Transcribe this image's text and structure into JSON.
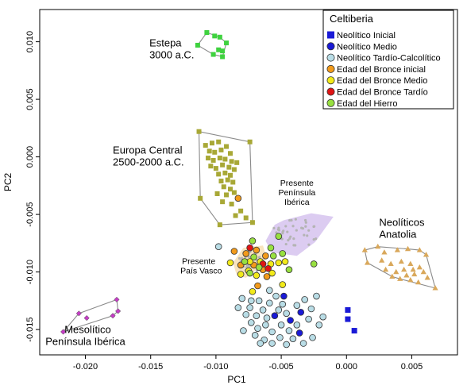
{
  "chart_data": {
    "type": "scatter",
    "xlabel": "PC1",
    "ylabel": "PC2",
    "xlim": [
      -0.0235,
      0.0085
    ],
    "ylim": [
      -0.0172,
      0.0128
    ],
    "xticks": [
      -0.02,
      -0.015,
      -0.01,
      -0.005,
      0.0,
      0.005
    ],
    "xtick_labels": [
      "-0.020",
      "-0.015",
      "-0.010",
      "-0.005",
      "0.000",
      "0.005"
    ],
    "yticks": [
      0.01,
      0.005,
      0.0,
      -0.005,
      -0.01,
      -0.015
    ],
    "ytick_labels": [
      "0.010",
      "0.005",
      "0.000",
      "-0.005",
      "-0.010",
      "-0.015"
    ],
    "legend": {
      "title": "Celtiberia",
      "position": "top-right",
      "entries": [
        {
          "label": "Neolítico Inicial",
          "marker": "square",
          "color": "#1a1ad6"
        },
        {
          "label": "Neolítico Medio",
          "marker": "circle",
          "color": "#1a1ad6"
        },
        {
          "label": "Neolítico Tardío-Calcolítico",
          "marker": "circle",
          "color": "#b9dde6"
        },
        {
          "label": "Edad del Bronce inicial",
          "marker": "circle",
          "color": "#f29a1a"
        },
        {
          "label": "Edad del Bronce Medio",
          "marker": "circle",
          "color": "#f2ea1a"
        },
        {
          "label": "Edad del Bronce Tardío",
          "marker": "circle",
          "color": "#e01414"
        },
        {
          "label": "Edad del Hierro",
          "marker": "circle",
          "color": "#98e040"
        }
      ]
    },
    "annotations": [
      {
        "lines": [
          "Estepa",
          "3000 a.C."
        ],
        "x": -0.0151,
        "y": 0.0096,
        "size": "large"
      },
      {
        "lines": [
          "Europa Central",
          "2500-2000 a.C."
        ],
        "x": -0.0179,
        "y": 0.0003,
        "size": "large"
      },
      {
        "lines": [
          "Neolíticos",
          "Anatolia"
        ],
        "x": 0.0025,
        "y": -0.006,
        "size": "large"
      },
      {
        "lines": [
          "Mesolítico",
          "Península Ibérica"
        ],
        "x": -0.0216,
        "y": -0.0153,
        "size": "large"
      },
      {
        "lines": [
          "Presente",
          "Península",
          "Ibérica"
        ],
        "x": -0.0038,
        "y": -0.0025,
        "size": "small"
      },
      {
        "lines": [
          "Presente",
          "País Vasco"
        ],
        "x": -0.0126,
        "y": -0.0093,
        "size": "small"
      }
    ],
    "reference_groups": [
      {
        "name": "Estepa",
        "color": "#3fd23f",
        "marker": "square",
        "hull": true,
        "points": [
          [
            -0.0114,
            0.0097
          ],
          [
            -0.0107,
            0.0108
          ],
          [
            -0.0101,
            0.0105
          ],
          [
            -0.0097,
            0.0104
          ],
          [
            -0.0092,
            0.0099
          ],
          [
            -0.0095,
            0.0092
          ],
          [
            -0.0102,
            0.0089
          ],
          [
            -0.0095,
            0.0087
          ],
          [
            -0.0098,
            0.0093
          ]
        ]
      },
      {
        "name": "Europa Central",
        "color": "#a8a836",
        "marker": "square",
        "hull": true,
        "points": [
          [
            -0.0113,
            0.0022
          ],
          [
            -0.0112,
            -0.0036
          ],
          [
            -0.0097,
            -0.0059
          ],
          [
            -0.0072,
            -0.0057
          ],
          [
            -0.0074,
            0.0013
          ],
          [
            -0.0108,
            0.001
          ],
          [
            -0.0103,
            0.0012
          ],
          [
            -0.0098,
            0.0013
          ],
          [
            -0.0105,
            0.0005
          ],
          [
            -0.0101,
            0.0004
          ],
          [
            -0.0096,
            0.0006
          ],
          [
            -0.0092,
            0.0009
          ],
          [
            -0.0089,
            0.0003
          ],
          [
            -0.0106,
            -0.0001
          ],
          [
            -0.0102,
            -0.0003
          ],
          [
            -0.0097,
            -0.0001
          ],
          [
            -0.0093,
            -0.0002
          ],
          [
            -0.0088,
            -0.0004
          ],
          [
            -0.0084,
            -0.0005
          ],
          [
            -0.0104,
            -0.0008
          ],
          [
            -0.01,
            -0.001
          ],
          [
            -0.0095,
            -0.0007
          ],
          [
            -0.009,
            -0.0009
          ],
          [
            -0.0086,
            -0.0011
          ],
          [
            -0.0098,
            -0.0015
          ],
          [
            -0.0093,
            -0.0014
          ],
          [
            -0.0089,
            -0.0016
          ],
          [
            -0.0096,
            -0.0021
          ],
          [
            -0.0091,
            -0.002
          ],
          [
            -0.0087,
            -0.0022
          ],
          [
            -0.0094,
            -0.0026
          ],
          [
            -0.0089,
            -0.0028
          ],
          [
            -0.0099,
            -0.0032
          ],
          [
            -0.0092,
            -0.0033
          ],
          [
            -0.0086,
            -0.0031
          ],
          [
            -0.0095,
            -0.0039
          ],
          [
            -0.0088,
            -0.0041
          ],
          [
            -0.0081,
            -0.0047
          ],
          [
            -0.0085,
            -0.0051
          ],
          [
            -0.0077,
            -0.0053
          ]
        ]
      },
      {
        "name": "Neolíticos Anatolia",
        "color": "#d9a85b",
        "marker": "triangle",
        "hull": true,
        "points": [
          [
            0.0014,
            -0.0081
          ],
          [
            0.0016,
            -0.0092
          ],
          [
            0.0035,
            -0.0104
          ],
          [
            0.0055,
            -0.0109
          ],
          [
            0.0068,
            -0.0114
          ],
          [
            0.0061,
            -0.0085
          ],
          [
            0.0024,
            -0.0078
          ],
          [
            0.0029,
            -0.0083
          ],
          [
            0.0039,
            -0.0081
          ],
          [
            0.0047,
            -0.008
          ],
          [
            0.0056,
            -0.0081
          ],
          [
            0.0027,
            -0.009
          ],
          [
            0.0034,
            -0.0093
          ],
          [
            0.0042,
            -0.0091
          ],
          [
            0.0049,
            -0.0093
          ],
          [
            0.0051,
            -0.0098
          ],
          [
            0.0056,
            -0.0096
          ],
          [
            0.0044,
            -0.0098
          ],
          [
            0.0038,
            -0.01
          ],
          [
            0.0046,
            -0.0103
          ],
          [
            0.0052,
            -0.0102
          ],
          [
            0.0059,
            -0.01
          ],
          [
            0.0041,
            -0.0106
          ],
          [
            0.0049,
            -0.0107
          ],
          [
            0.0062,
            -0.0105
          ],
          [
            0.003,
            -0.0098
          ]
        ]
      },
      {
        "name": "Mesolítico Península Ibérica",
        "color": "#c53ec5",
        "marker": "diamond",
        "hull": true,
        "points": [
          [
            -0.0217,
            -0.0152
          ],
          [
            -0.0205,
            -0.0136
          ],
          [
            -0.0176,
            -0.0124
          ],
          [
            -0.0175,
            -0.0134
          ],
          [
            -0.0179,
            -0.0138
          ],
          [
            -0.0199,
            -0.014
          ]
        ]
      }
    ],
    "background_regions": [
      {
        "name": "Presente Península Ibérica",
        "color": "#d6c3ef",
        "points_color": "#b4b4b4",
        "hull": [
          [
            -0.0062,
            -0.0073
          ],
          [
            -0.0055,
            -0.0059
          ],
          [
            -0.0048,
            -0.0055
          ],
          [
            -0.0027,
            -0.0049
          ],
          [
            -0.001,
            -0.0052
          ],
          [
            -0.0024,
            -0.0074
          ],
          [
            -0.0038,
            -0.0086
          ],
          [
            -0.0057,
            -0.0083
          ]
        ]
      },
      {
        "name": "Presente País Vasco",
        "color": "#f7dfb3",
        "points_color": "#b4b4b4",
        "hull": [
          [
            -0.0084,
            -0.0103
          ],
          [
            -0.0087,
            -0.0092
          ],
          [
            -0.0079,
            -0.0079
          ],
          [
            -0.0064,
            -0.0077
          ],
          [
            -0.0061,
            -0.0088
          ],
          [
            -0.0068,
            -0.0097
          ],
          [
            -0.0077,
            -0.0105
          ]
        ]
      }
    ],
    "series": [
      {
        "name": "Neolítico Inicial",
        "color": "#1a1ad6",
        "marker": "square",
        "points": [
          [
            0.0001,
            -0.0133
          ],
          [
            0.0001,
            -0.0141
          ],
          [
            0.0006,
            -0.0151
          ]
        ]
      },
      {
        "name": "Neolítico Medio",
        "color": "#1a1ad6",
        "marker": "circle",
        "points": [
          [
            -0.0048,
            -0.0121
          ],
          [
            -0.0035,
            -0.0135
          ],
          [
            -0.0043,
            -0.0142
          ],
          [
            -0.0055,
            -0.0138
          ],
          [
            -0.0036,
            -0.0153
          ]
        ]
      },
      {
        "name": "Neolítico Tardío-Calcolítico",
        "color": "#b9dde6",
        "marker": "circle",
        "points": [
          [
            -0.0098,
            -0.0078
          ],
          [
            -0.008,
            -0.0123
          ],
          [
            -0.0074,
            -0.0131
          ],
          [
            -0.0067,
            -0.0125
          ],
          [
            -0.0064,
            -0.0133
          ],
          [
            -0.0059,
            -0.0127
          ],
          [
            -0.0054,
            -0.0121
          ],
          [
            -0.0049,
            -0.0128
          ],
          [
            -0.0046,
            -0.0136
          ],
          [
            -0.0038,
            -0.0129
          ],
          [
            -0.0032,
            -0.0124
          ],
          [
            -0.0027,
            -0.0132
          ],
          [
            -0.0023,
            -0.0121
          ],
          [
            -0.0018,
            -0.0139
          ],
          [
            -0.0021,
            -0.0146
          ],
          [
            -0.0026,
            -0.0157
          ],
          [
            -0.0038,
            -0.0146
          ],
          [
            -0.0044,
            -0.0151
          ],
          [
            -0.005,
            -0.0146
          ],
          [
            -0.0057,
            -0.0152
          ],
          [
            -0.0062,
            -0.0146
          ],
          [
            -0.0068,
            -0.0149
          ],
          [
            -0.0073,
            -0.0144
          ],
          [
            -0.0077,
            -0.0137
          ],
          [
            -0.0079,
            -0.0151
          ],
          [
            -0.007,
            -0.0155
          ],
          [
            -0.0063,
            -0.0159
          ],
          [
            -0.0057,
            -0.0162
          ],
          [
            -0.0051,
            -0.0157
          ],
          [
            -0.0046,
            -0.0163
          ],
          [
            -0.0069,
            -0.0138
          ],
          [
            -0.0061,
            -0.014
          ],
          [
            -0.0052,
            -0.0133
          ],
          [
            -0.0041,
            -0.0158
          ],
          [
            -0.0073,
            -0.0125
          ],
          [
            -0.0059,
            -0.0116
          ],
          [
            -0.0083,
            -0.0131
          ],
          [
            -0.0066,
            -0.0162
          ],
          [
            -0.0033,
            -0.0162
          ],
          [
            -0.0029,
            -0.0141
          ]
        ]
      },
      {
        "name": "Edad del Bronce inicial",
        "color": "#f29a1a",
        "marker": "circle",
        "points": [
          [
            -0.0083,
            -0.0036
          ],
          [
            -0.0086,
            -0.0082
          ],
          [
            -0.0077,
            -0.0084
          ],
          [
            -0.0069,
            -0.0081
          ],
          [
            -0.0062,
            -0.0086
          ],
          [
            -0.0071,
            -0.0094
          ],
          [
            -0.0064,
            -0.0098
          ],
          [
            -0.0081,
            -0.0094
          ],
          [
            -0.0061,
            -0.0104
          ],
          [
            -0.0068,
            -0.0112
          ]
        ]
      },
      {
        "name": "Edad del Bronce Medio",
        "color": "#f2ea1a",
        "marker": "circle",
        "points": [
          [
            -0.0089,
            -0.0092
          ],
          [
            -0.0074,
            -0.0091
          ],
          [
            -0.0066,
            -0.0091
          ],
          [
            -0.0058,
            -0.0093
          ],
          [
            -0.0052,
            -0.0092
          ],
          [
            -0.0081,
            -0.0102
          ],
          [
            -0.0075,
            -0.0099
          ],
          [
            -0.0069,
            -0.0103
          ],
          [
            -0.0057,
            -0.0101
          ],
          [
            -0.0047,
            -0.0091
          ],
          [
            -0.0072,
            -0.0117
          ],
          [
            -0.0049,
            -0.0111
          ]
        ]
      },
      {
        "name": "Edad del Bronce Tardío",
        "color": "#e01414",
        "marker": "circle",
        "points": [
          [
            -0.0074,
            -0.0079
          ],
          [
            -0.0064,
            -0.0093
          ],
          [
            -0.006,
            -0.0097
          ]
        ]
      },
      {
        "name": "Edad del Hierro",
        "color": "#98e040",
        "marker": "circle",
        "points": [
          [
            -0.0072,
            -0.0073
          ],
          [
            -0.0058,
            -0.0079
          ],
          [
            -0.0049,
            -0.0084
          ],
          [
            -0.0052,
            -0.0069
          ],
          [
            -0.0071,
            -0.0087
          ],
          [
            -0.0074,
            -0.0101
          ],
          [
            -0.0044,
            -0.0098
          ],
          [
            -0.0025,
            -0.0093
          ],
          [
            -0.0067,
            -0.0096
          ],
          [
            -0.0056,
            -0.0086
          ],
          [
            -0.0078,
            -0.0091
          ]
        ]
      }
    ]
  }
}
